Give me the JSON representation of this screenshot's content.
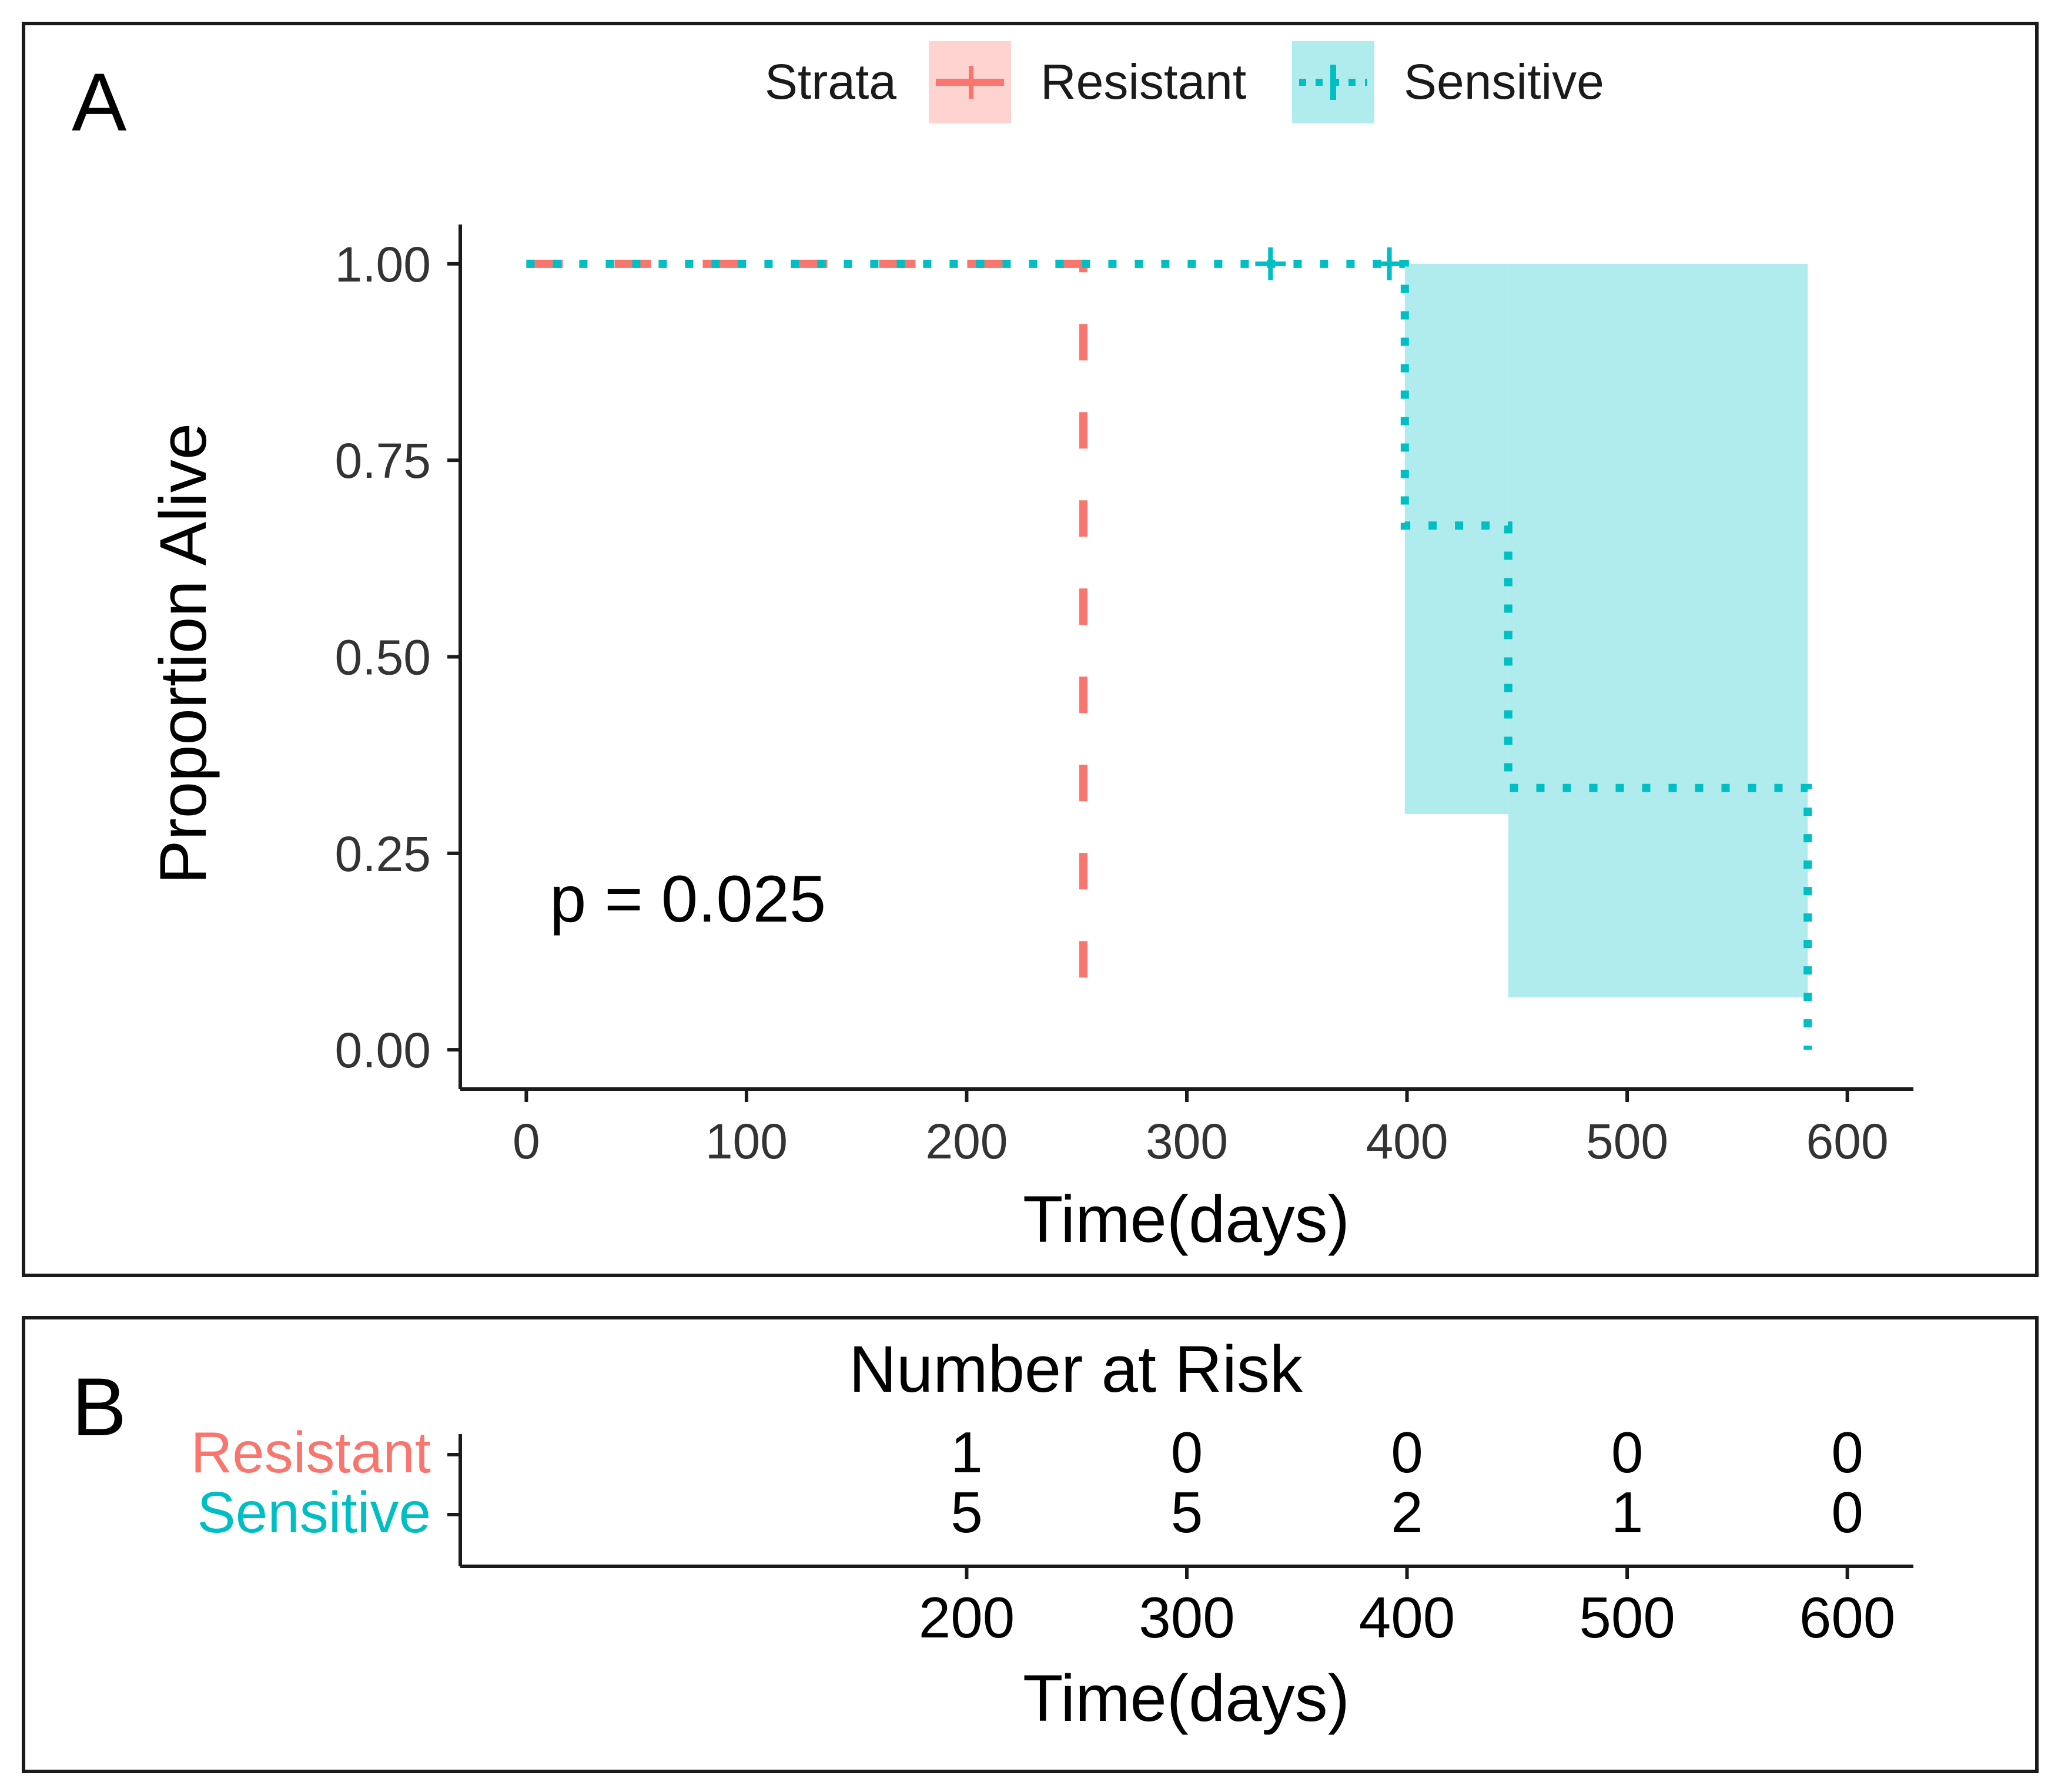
{
  "panel_a": {
    "label": "A",
    "p_value": "p = 0.025",
    "legend": {
      "title": "Strata",
      "entries": [
        {
          "label": "Resistant",
          "color": "#F8766D",
          "fill": "#FFD3D0"
        },
        {
          "label": "Sensitive",
          "color": "#00BFC4",
          "fill": "#B0ECEE"
        }
      ]
    }
  },
  "panel_b": {
    "label": "B",
    "title": "Number at Risk"
  },
  "chart_data": [
    {
      "type": "line",
      "subtype": "kaplan-meier",
      "xlabel": "Time(days)",
      "ylabel": "Proportion Alive",
      "xlim": [
        -30,
        630
      ],
      "ylim": [
        -0.05,
        1.05
      ],
      "x_ticks": [
        0,
        100,
        200,
        300,
        400,
        500,
        600
      ],
      "x_tick_labels": [
        "0",
        "100",
        "200",
        "300",
        "400",
        "500",
        "600"
      ],
      "y_ticks": [
        0,
        0.25,
        0.5,
        0.75,
        1
      ],
      "y_tick_labels": [
        "0.00",
        "0.25",
        "0.50",
        "0.75",
        "1.00"
      ],
      "legend_position": "top",
      "annotation": {
        "text": "p = 0.025",
        "x": 10,
        "y": 0.19
      },
      "series": [
        {
          "name": "Resistant",
          "color": "#F8766D",
          "linestyle": "dashed",
          "steps": [
            [
              0,
              1.0
            ],
            [
              253,
              1.0
            ],
            [
              253,
              0.06
            ]
          ],
          "censored": [],
          "ci": []
        },
        {
          "name": "Sensitive",
          "color": "#00BFC4",
          "linestyle": "dotted",
          "steps": [
            [
              0,
              1.0
            ],
            [
              399,
              1.0
            ],
            [
              399,
              0.667
            ],
            [
              446,
              0.667
            ],
            [
              446,
              0.333
            ],
            [
              582,
              0.333
            ],
            [
              582,
              0.0
            ]
          ],
          "censored": [
            [
              338,
              1.0
            ],
            [
              392,
              1.0
            ]
          ],
          "ci": [
            {
              "x0": 399,
              "x1": 446,
              "lower": 0.3,
              "upper": 1.0
            },
            {
              "x0": 446,
              "x1": 582,
              "lower": 0.067,
              "upper": 1.0
            }
          ]
        }
      ]
    },
    {
      "type": "table",
      "title": "Number at Risk",
      "xlabel": "Time(days)",
      "xlim": [
        -30,
        630
      ],
      "x_ticks": [
        200,
        300,
        400,
        500,
        600
      ],
      "x_tick_labels": [
        "200",
        "300",
        "400",
        "500",
        "600"
      ],
      "rows": [
        {
          "name": "Resistant",
          "color": "#F8766D",
          "values": [
            1,
            0,
            0,
            0,
            0
          ]
        },
        {
          "name": "Sensitive",
          "color": "#00BFC4",
          "values": [
            5,
            5,
            2,
            1,
            0
          ]
        }
      ]
    }
  ]
}
